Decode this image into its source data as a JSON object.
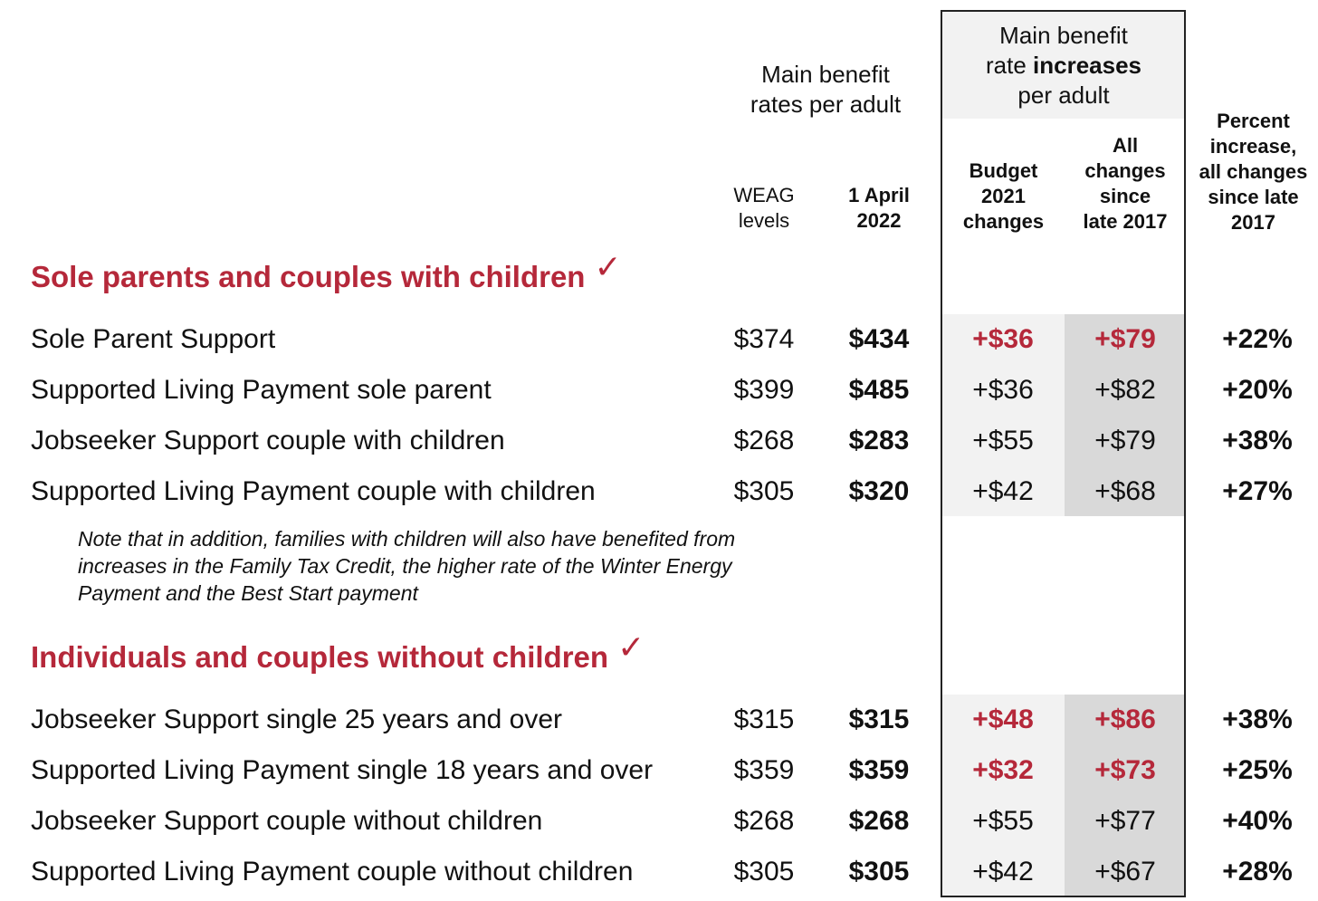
{
  "header": {
    "main_rates": [
      "Main benefit",
      "rates per adult"
    ],
    "increases": {
      "line1": "Main benefit",
      "line2_pre": "rate ",
      "line2_bold": "increases",
      "line3": "per adult"
    },
    "percent": [
      "Percent",
      "increase,",
      "all changes",
      "since late",
      "2017"
    ]
  },
  "columns": {
    "weag": [
      "WEAG",
      "levels"
    ],
    "april": [
      "1 April",
      "2022"
    ],
    "budget": [
      "Budget",
      "2021",
      "changes"
    ],
    "all": [
      "All",
      "changes",
      "since",
      "late 2017"
    ]
  },
  "sections": [
    {
      "title": "Sole parents and couples with children",
      "check": "✓",
      "rows": [
        {
          "label": "Sole Parent Support",
          "weag": "$374",
          "april": "$434",
          "budget": "+$36",
          "all": "+$79",
          "pct": "+22%"
        },
        {
          "label": "Supported Living Payment sole parent",
          "weag": "$399",
          "april": "$485",
          "budget": "+$36",
          "all": "+$82",
          "pct": "+20%"
        },
        {
          "label": "Jobseeker Support couple with children",
          "weag": "$268",
          "april": "$283",
          "budget": "+$55",
          "all": "+$79",
          "pct": "+38%"
        },
        {
          "label": "Supported Living Payment couple with children",
          "weag": "$305",
          "april": "$320",
          "budget": "+$42",
          "all": "+$68",
          "pct": "+27%"
        }
      ],
      "note": [
        "Note that in addition, families with children will also have benefited from",
        "increases in the Family Tax Credit, the higher rate of the Winter Energy",
        "Payment and the Best Start payment"
      ]
    },
    {
      "title": "Individuals and couples without children",
      "check": "✓",
      "rows": [
        {
          "label": "Jobseeker Support single 25 years and over",
          "weag": "$315",
          "april": "$315",
          "budget": "+$48",
          "all": "+$86",
          "pct": "+38%"
        },
        {
          "label": "Supported Living Payment single 18 years and over",
          "weag": "$359",
          "april": "$359",
          "budget": "+$32",
          "all": "+$73",
          "pct": "+25%"
        },
        {
          "label": "Jobseeker Support couple without children",
          "weag": "$268",
          "april": "$268",
          "budget": "+$55",
          "all": "+$77",
          "pct": "+40%"
        },
        {
          "label": "Supported Living Payment couple without children",
          "weag": "$305",
          "april": "$305",
          "budget": "+$42",
          "all": "+$67",
          "pct": "+28%"
        }
      ]
    }
  ],
  "colors": {
    "accent_red": "#b5283a",
    "shade_light": "#f2f2f2",
    "shade_dark": "#d9d9d9"
  }
}
